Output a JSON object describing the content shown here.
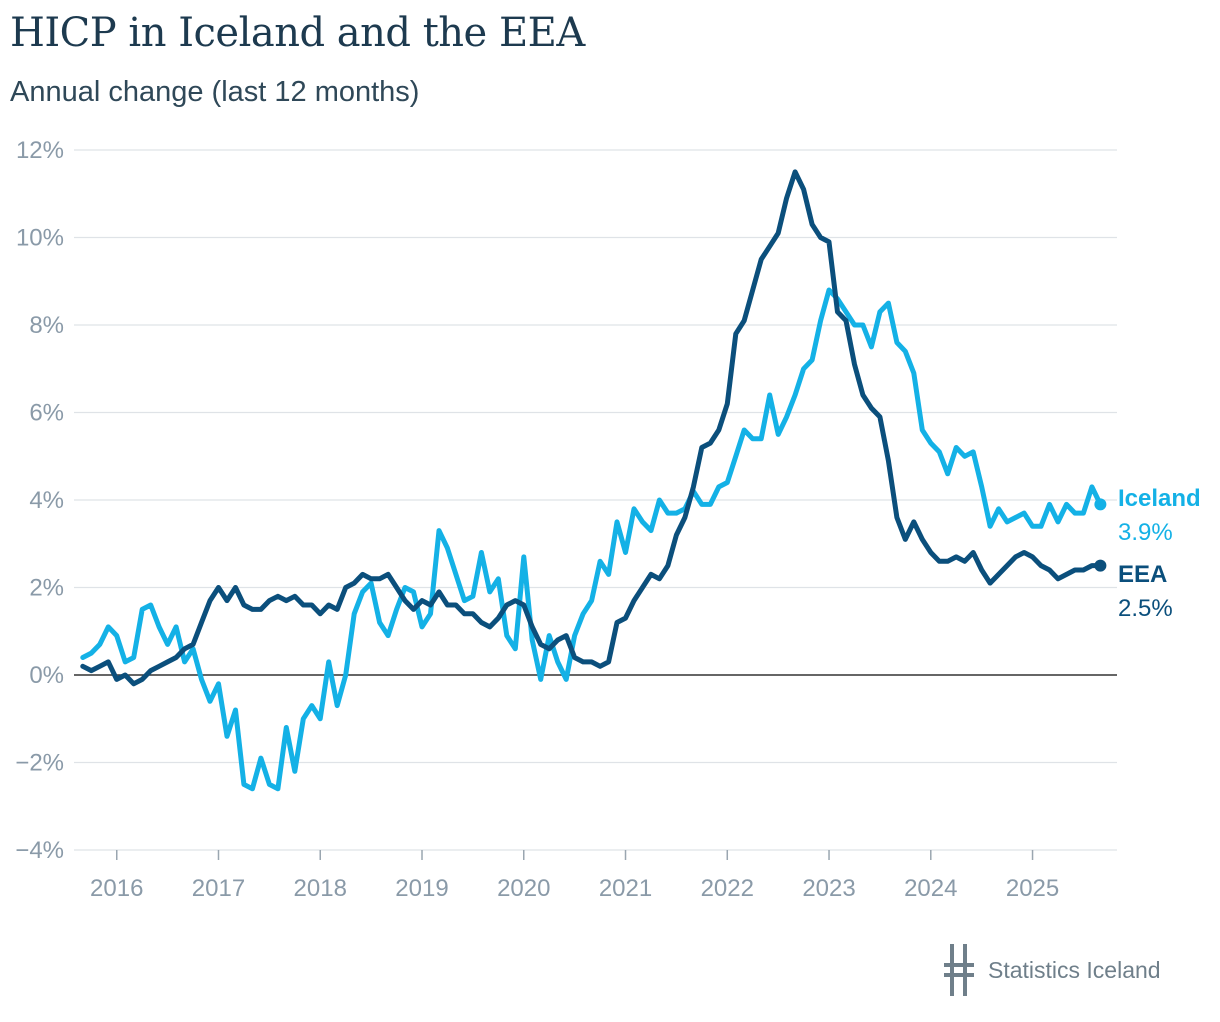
{
  "header": {
    "title": "HICP in Iceland and the EEA",
    "subtitle": "Annual change (last 12 months)"
  },
  "footer": {
    "brand": "Statistics Iceland"
  },
  "colors": {
    "iceland": "#14b1e6",
    "eea": "#0b4f7c",
    "grid": "#dfe3e7",
    "zero": "#333333",
    "tick": "#8a9aa8"
  },
  "chart_data": {
    "type": "line",
    "title": "HICP in Iceland and the EEA",
    "subtitle": "Annual change (last 12 months)",
    "xlabel": "",
    "ylabel": "",
    "ylim": [
      -4,
      12
    ],
    "yticks": [
      12,
      10,
      8,
      6,
      4,
      2,
      0,
      -2,
      -4
    ],
    "ytick_labels": [
      "12%",
      "10%",
      "8%",
      "6%",
      "4%",
      "2%",
      "0%",
      "−2%",
      "−4%"
    ],
    "xlim": [
      2015.58,
      2025.83
    ],
    "xticks": [
      2016,
      2017,
      2018,
      2019,
      2020,
      2021,
      2022,
      2023,
      2024,
      2025
    ],
    "xtick_labels": [
      "2016",
      "2017",
      "2018",
      "2019",
      "2020",
      "2021",
      "2022",
      "2023",
      "2024",
      "2025"
    ],
    "x_start": "2015-09",
    "x_step_months": 1,
    "grid": true,
    "series": [
      {
        "name": "Iceland",
        "end_label": "3.9%",
        "values": [
          0.4,
          0.5,
          0.7,
          1.1,
          0.9,
          0.3,
          0.4,
          1.5,
          1.6,
          1.1,
          0.7,
          1.1,
          0.3,
          0.6,
          -0.1,
          -0.6,
          -0.2,
          -1.4,
          -0.8,
          -2.5,
          -2.6,
          -1.9,
          -2.5,
          -2.6,
          -1.2,
          -2.2,
          -1.0,
          -0.7,
          -1.0,
          0.3,
          -0.7,
          0.0,
          1.4,
          1.9,
          2.1,
          1.2,
          0.9,
          1.5,
          2.0,
          1.9,
          1.1,
          1.4,
          3.3,
          2.9,
          2.3,
          1.7,
          1.8,
          2.8,
          1.9,
          2.2,
          0.9,
          0.6,
          2.7,
          0.8,
          -0.1,
          0.9,
          0.3,
          -0.1,
          0.9,
          1.4,
          1.7,
          2.6,
          2.3,
          3.5,
          2.8,
          3.8,
          3.5,
          3.3,
          4.0,
          3.7,
          3.7,
          3.8,
          4.2,
          3.9,
          3.9,
          4.3,
          4.4,
          5.0,
          5.6,
          5.4,
          5.4,
          6.4,
          5.5,
          5.9,
          6.4,
          7.0,
          7.2,
          8.1,
          8.8,
          8.6,
          8.3,
          8.0,
          8.0,
          7.5,
          8.3,
          8.5,
          7.6,
          7.4,
          6.9,
          5.6,
          5.3,
          5.1,
          4.6,
          5.2,
          5.0,
          5.1,
          4.3,
          3.4,
          3.8,
          3.5,
          3.6,
          3.7,
          3.4,
          3.4,
          3.9,
          3.5,
          3.9,
          3.7,
          3.7,
          4.3,
          3.9
        ]
      },
      {
        "name": "EEA",
        "end_label": "2.5%",
        "values": [
          0.2,
          0.1,
          0.2,
          0.3,
          -0.1,
          0.0,
          -0.2,
          -0.1,
          0.1,
          0.2,
          0.3,
          0.4,
          0.6,
          0.7,
          1.2,
          1.7,
          2.0,
          1.7,
          2.0,
          1.6,
          1.5,
          1.5,
          1.7,
          1.8,
          1.7,
          1.8,
          1.6,
          1.6,
          1.4,
          1.6,
          1.5,
          2.0,
          2.1,
          2.3,
          2.2,
          2.2,
          2.3,
          2.0,
          1.7,
          1.5,
          1.7,
          1.6,
          1.9,
          1.6,
          1.6,
          1.4,
          1.4,
          1.2,
          1.1,
          1.3,
          1.6,
          1.7,
          1.6,
          1.1,
          0.7,
          0.6,
          0.8,
          0.9,
          0.4,
          0.3,
          0.3,
          0.2,
          0.3,
          1.2,
          1.3,
          1.7,
          2.0,
          2.3,
          2.2,
          2.5,
          3.2,
          3.6,
          4.3,
          5.2,
          5.3,
          5.6,
          6.2,
          7.8,
          8.1,
          8.8,
          9.5,
          9.8,
          10.1,
          10.9,
          11.5,
          11.1,
          10.3,
          10.0,
          9.9,
          8.3,
          8.1,
          7.1,
          6.4,
          6.1,
          5.9,
          4.9,
          3.6,
          3.1,
          3.5,
          3.1,
          2.8,
          2.6,
          2.6,
          2.7,
          2.6,
          2.8,
          2.4,
          2.1,
          2.3,
          2.5,
          2.7,
          2.8,
          2.7,
          2.5,
          2.4,
          2.2,
          2.3,
          2.4,
          2.4,
          2.5,
          2.5
        ]
      }
    ]
  }
}
